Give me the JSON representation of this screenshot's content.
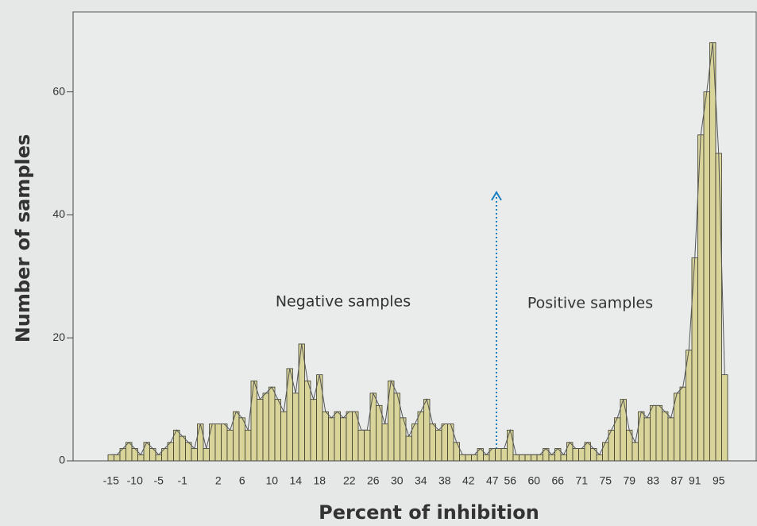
{
  "chart_data": {
    "type": "bar",
    "xlabel": "Percent of inhibition",
    "ylabel": "Number of samples",
    "annotations": [
      "Negative samples",
      "Positive samples"
    ],
    "color": "#d8d49a",
    "ylim": [
      0,
      73
    ],
    "yticks": [
      0,
      20,
      40,
      60
    ],
    "categories": [
      "-15",
      null,
      null,
      null,
      "-10",
      null,
      null,
      null,
      "-5",
      null,
      null,
      null,
      "-1",
      null,
      null,
      null,
      null,
      null,
      "2",
      null,
      null,
      null,
      "6",
      null,
      null,
      null,
      null,
      "10",
      null,
      null,
      null,
      "14",
      null,
      null,
      null,
      "18",
      null,
      null,
      null,
      null,
      "22",
      null,
      null,
      null,
      "26",
      null,
      null,
      null,
      "30",
      null,
      null,
      null,
      "34",
      null,
      null,
      null,
      "38",
      null,
      null,
      null,
      "42",
      null,
      null,
      null,
      "47",
      null,
      null,
      "56",
      null,
      null,
      null,
      "60",
      null,
      null,
      null,
      "66",
      null,
      null,
      null,
      "71",
      null,
      null,
      null,
      "75",
      null,
      null,
      null,
      "79",
      null,
      null,
      null,
      "83",
      null,
      null,
      null,
      "87",
      null,
      null,
      "91",
      null,
      null,
      null,
      "95",
      null
    ],
    "values": [
      1,
      1,
      2,
      3,
      2,
      1,
      3,
      2,
      1,
      2,
      3,
      5,
      4,
      3,
      2,
      6,
      2,
      6,
      6,
      6,
      5,
      8,
      7,
      5,
      13,
      10,
      11,
      12,
      10,
      8,
      15,
      11,
      19,
      13,
      10,
      14,
      8,
      7,
      8,
      7,
      8,
      8,
      5,
      5,
      11,
      9,
      6,
      13,
      11,
      7,
      4,
      6,
      8,
      10,
      6,
      5,
      6,
      6,
      3,
      1,
      1,
      1,
      2,
      1,
      2,
      2,
      2,
      5,
      1,
      1,
      1,
      1,
      1,
      2,
      1,
      2,
      1,
      3,
      2,
      2,
      3,
      2,
      1,
      3,
      5,
      7,
      10,
      5,
      3,
      8,
      7,
      9,
      9,
      8,
      7,
      11,
      12,
      18,
      33,
      53,
      60,
      68,
      50,
      14
    ]
  }
}
